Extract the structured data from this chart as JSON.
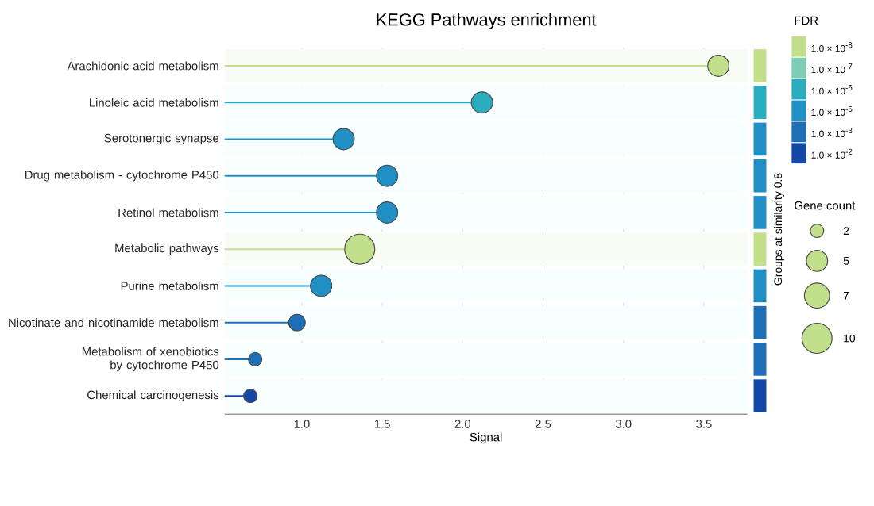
{
  "chart_data": {
    "type": "lollipop",
    "orientation": "horizontal",
    "title": "KEGG Pathways enrichment",
    "xlabel": "Signal",
    "legend_title": "FDR",
    "legend": "top right",
    "categories": [
      "Arachidonic acid metabolism",
      "Linoleic acid metabolism",
      "Serotonergic synapse",
      "Drug metabolism - cytochrome P450",
      "Retinol metabolism",
      "Metabolic pathways",
      "Purine metabolism",
      "Nicotinate and nicotinamide metabolism",
      "Metabolism of xenobiotics by cytochrome P450",
      "Chemical carcinogenesis"
    ],
    "series": [
      {
        "name": "1.0 × 10$^{-8}$",
        "color": "#c2e08c",
        "values": [
          3.59,
          null,
          null,
          null,
          null,
          1.36,
          null,
          null,
          null,
          null
        ],
        "sizes": [
          5,
          null,
          null,
          null,
          null,
          10,
          null,
          null,
          null,
          null
        ]
      },
      {
        "name": "1.0 × 10$^{-7}$",
        "color": "#7dcdb4",
        "values": [
          null,
          null,
          null,
          null,
          null,
          null,
          null,
          null,
          null,
          null
        ],
        "sizes": [
          null,
          null,
          null,
          null,
          null,
          null,
          null,
          null,
          null,
          null
        ]
      },
      {
        "name": "1.0 × 10$^{-6}$",
        "color": "#2aadbf",
        "values": [
          null,
          2.12,
          null,
          null,
          null,
          null,
          null,
          null,
          null,
          null
        ],
        "sizes": [
          null,
          5,
          null,
          null,
          null,
          null,
          null,
          null,
          null,
          null
        ]
      },
      {
        "name": "1.0 × 10$^{-5}$",
        "color": "#1f8fc4",
        "values": [
          null,
          null,
          1.26,
          1.53,
          1.53,
          null,
          1.12,
          null,
          null,
          null
        ],
        "sizes": [
          null,
          null,
          5,
          5,
          5,
          null,
          5,
          null,
          null,
          null
        ]
      },
      {
        "name": "1.0 × 10$^{-3}$",
        "color": "#1f6fb8",
        "values": [
          null,
          null,
          null,
          null,
          null,
          null,
          null,
          0.97,
          0.71,
          null
        ],
        "sizes": [
          null,
          null,
          null,
          null,
          null,
          null,
          null,
          3,
          2,
          null
        ]
      },
      {
        "name": "1.0 × 10$^{-2}$",
        "color": "#1347a8",
        "values": [
          null,
          null,
          null,
          null,
          null,
          null,
          null,
          null,
          null,
          0.68
        ],
        "sizes": [
          null,
          null,
          null,
          null,
          null,
          null,
          null,
          null,
          null,
          2
        ]
      }
    ],
    "size_legend": [
      2,
      5,
      7,
      10
    ],
    "xlim": [
      0.52,
      3.77
    ],
    "xticks": [
      {
        "value": 1,
        "label": "1.0"
      },
      {
        "value": 1.5,
        "label": "1.5"
      },
      {
        "value": 2,
        "label": "2.0"
      },
      {
        "value": 2.5,
        "label": "2.5"
      },
      {
        "value": 3,
        "label": "3.0"
      },
      {
        "value": 3.5,
        "label": "3.5"
      }
    ],
    "grid": "x",
    "marker": "circle",
    "annotations": [
      "Groups at similarity 0.8",
      "Gene count"
    ]
  }
}
